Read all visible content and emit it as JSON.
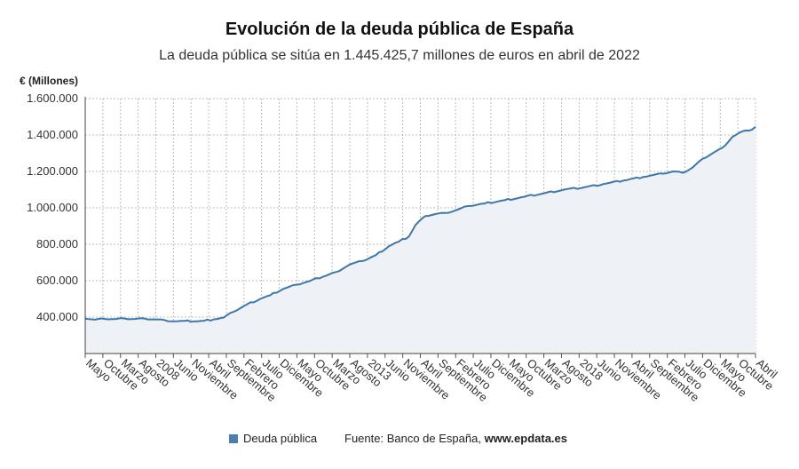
{
  "title": "Evolución de la deuda pública de España",
  "subtitle": "La deuda pública se sitúa en 1.445.425,7 millones de euros en abril de 2022",
  "legend_label": "Deuda pública",
  "source_prefix": "Fuente: Banco de España, ",
  "source_url": "www.epdata.es",
  "colors": {
    "line": "#3f78a8",
    "fill": "#eef2f7",
    "swatch": "#4a7fb0",
    "grid": "#bdbdbd"
  },
  "chart_data": {
    "type": "area",
    "title": "Evolución de la deuda pública de España",
    "ylabel": "€ (Millones)",
    "ylim": [
      200000,
      1600000
    ],
    "yticks": [
      400000,
      600000,
      800000,
      1000000,
      1200000,
      1400000,
      1600000
    ],
    "ytick_labels": [
      "400.000",
      "600.000",
      "800.000",
      "1.000.000",
      "1.200.000",
      "1.400.000",
      "1.600.000"
    ],
    "x_tick_labels": [
      "Mayo",
      "Octubre",
      "Marzo",
      "Agosto",
      "2008",
      "Junio",
      "Noviembre",
      "Abril",
      "Septiembre",
      "Febrero",
      "Julio",
      "Diciembre",
      "Mayo",
      "Octubre",
      "Marzo",
      "Agosto",
      "2013",
      "Junio",
      "Noviembre",
      "Abril",
      "Septiembre",
      "Febrero",
      "Julio",
      "Diciembre",
      "Mayo",
      "Octubre",
      "Marzo",
      "Agosto",
      "2018",
      "Junio",
      "Noviembre",
      "Abril",
      "Septiembre",
      "Febrero",
      "Julio",
      "Diciembre",
      "Mayo",
      "Octubre",
      "Abril"
    ],
    "x_start": "2005-05",
    "x_end": "2022-04",
    "grid": true,
    "legend_position": "bottom",
    "series": [
      {
        "name": "Deuda pública",
        "anchors": [
          [
            "2005-05",
            392000
          ],
          [
            "2005-08",
            386000
          ],
          [
            "2005-11",
            390000
          ],
          [
            "2006-02",
            389000
          ],
          [
            "2006-05",
            392000
          ],
          [
            "2006-08",
            390000
          ],
          [
            "2006-11",
            392000
          ],
          [
            "2007-02",
            388000
          ],
          [
            "2007-05",
            384000
          ],
          [
            "2007-08",
            377000
          ],
          [
            "2007-11",
            379000
          ],
          [
            "2008-02",
            377000
          ],
          [
            "2008-05",
            380000
          ],
          [
            "2008-08",
            388000
          ],
          [
            "2008-11",
            398000
          ],
          [
            "2009-02",
            430000
          ],
          [
            "2009-06",
            470000
          ],
          [
            "2009-10",
            500000
          ],
          [
            "2010-01",
            520000
          ],
          [
            "2010-05",
            555000
          ],
          [
            "2010-09",
            578000
          ],
          [
            "2011-01",
            598000
          ],
          [
            "2011-05",
            622000
          ],
          [
            "2011-09",
            648000
          ],
          [
            "2012-01",
            688000
          ],
          [
            "2012-05",
            708000
          ],
          [
            "2012-09",
            740000
          ],
          [
            "2013-01",
            790000
          ],
          [
            "2013-04",
            815000
          ],
          [
            "2013-07",
            842000
          ],
          [
            "2013-09",
            905000
          ],
          [
            "2013-12",
            955000
          ],
          [
            "2014-03",
            966000
          ],
          [
            "2014-06",
            972000
          ],
          [
            "2014-09",
            985000
          ],
          [
            "2015-01",
            1010000
          ],
          [
            "2015-06",
            1024000
          ],
          [
            "2015-12",
            1042000
          ],
          [
            "2016-06",
            1061000
          ],
          [
            "2016-12",
            1080000
          ],
          [
            "2017-06",
            1100000
          ],
          [
            "2017-12",
            1112000
          ],
          [
            "2018-06",
            1131000
          ],
          [
            "2018-12",
            1150000
          ],
          [
            "2019-06",
            1170000
          ],
          [
            "2019-12",
            1188000
          ],
          [
            "2020-03",
            1200000
          ],
          [
            "2020-06",
            1192000
          ],
          [
            "2020-09",
            1222000
          ],
          [
            "2020-12",
            1270000
          ],
          [
            "2021-03",
            1300000
          ],
          [
            "2021-06",
            1330000
          ],
          [
            "2021-09",
            1390000
          ],
          [
            "2021-12",
            1420000
          ],
          [
            "2022-01",
            1425000
          ],
          [
            "2022-03",
            1430000
          ],
          [
            "2022-04",
            1445425.7
          ]
        ]
      }
    ]
  }
}
